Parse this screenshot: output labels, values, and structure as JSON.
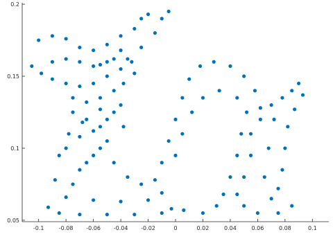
{
  "chart_data": {
    "type": "scatter",
    "title": "",
    "xlabel": "",
    "ylabel": "",
    "xlim": [
      -0.112,
      0.112
    ],
    "ylim": [
      0.049,
      0.201
    ],
    "grid": false,
    "legend": "none",
    "x_ticks": [
      -0.1,
      -0.08,
      -0.06,
      -0.04,
      -0.02,
      0,
      0.02,
      0.04,
      0.06,
      0.08,
      0.1
    ],
    "x_tick_labels": [
      "-0.1",
      "-0.08",
      "-0.06",
      "-0.04",
      "-0.02",
      "0",
      "0.02",
      "0.04",
      "0.06",
      "0.08",
      "0.1"
    ],
    "y_ticks": [
      0.05,
      0.1,
      0.15,
      0.2
    ],
    "y_tick_labels": [
      "0.05",
      "0.1",
      "0.15",
      "0.2"
    ],
    "marker_color": "#0072BD",
    "series": [
      {
        "points_xy": [
          [
            -0.093,
            0.059
          ],
          [
            -0.085,
            0.055
          ],
          [
            -0.07,
            0.054
          ],
          [
            -0.05,
            0.054
          ],
          [
            -0.03,
            0.054
          ],
          [
            -0.01,
            0.055
          ],
          [
            -0.003,
            0.058
          ],
          [
            -0.08,
            0.066
          ],
          [
            -0.06,
            0.064
          ],
          [
            -0.04,
            0.063
          ],
          [
            -0.02,
            0.064
          ],
          [
            -0.01,
            0.069
          ],
          [
            -0.088,
            0.078
          ],
          [
            -0.085,
            0.095
          ],
          [
            -0.078,
            0.11
          ],
          [
            -0.065,
            0.12
          ],
          [
            -0.055,
            0.127
          ],
          [
            -0.045,
            0.125
          ],
          [
            -0.038,
            0.115
          ],
          [
            -0.07,
            0.085
          ],
          [
            -0.06,
            0.095
          ],
          [
            -0.05,
            0.105
          ],
          [
            -0.045,
            0.09
          ],
          [
            -0.035,
            0.08
          ],
          [
            -0.025,
            0.075
          ],
          [
            -0.015,
            0.078
          ],
          [
            -0.08,
            0.1
          ],
          [
            -0.07,
            0.108
          ],
          [
            -0.06,
            0.112
          ],
          [
            -0.055,
            0.1
          ],
          [
            -0.065,
            0.09
          ],
          [
            -0.075,
            0.075
          ],
          [
            -0.01,
            0.09
          ],
          [
            -0.005,
            0.105
          ],
          [
            0.0,
            0.12
          ],
          [
            0.005,
            0.135
          ],
          [
            0.01,
            0.148
          ],
          [
            0.018,
            0.157
          ],
          [
            0.028,
            0.16
          ],
          [
            0.04,
            0.157
          ],
          [
            0.05,
            0.15
          ],
          [
            0.058,
            0.14
          ],
          [
            0.062,
            0.128
          ],
          [
            0.0,
            0.095
          ],
          [
            0.005,
            0.11
          ],
          [
            0.012,
            0.125
          ],
          [
            0.02,
            0.135
          ],
          [
            0.032,
            0.14
          ],
          [
            0.045,
            0.135
          ],
          [
            0.052,
            0.125
          ],
          [
            0.048,
            0.11
          ],
          [
            0.045,
            0.095
          ],
          [
            0.04,
            0.08
          ],
          [
            0.035,
            0.068
          ],
          [
            0.03,
            0.06
          ],
          [
            0.02,
            0.055
          ],
          [
            0.006,
            0.057
          ],
          [
            0.055,
            0.11
          ],
          [
            0.055,
            0.095
          ],
          [
            0.05,
            0.08
          ],
          [
            0.045,
            0.068
          ],
          [
            0.05,
            0.06
          ],
          [
            0.06,
            0.055
          ],
          [
            0.075,
            0.055
          ],
          [
            0.085,
            0.06
          ],
          [
            0.062,
            0.12
          ],
          [
            0.07,
            0.13
          ],
          [
            0.078,
            0.135
          ],
          [
            0.085,
            0.14
          ],
          [
            0.09,
            0.145
          ],
          [
            0.093,
            0.137
          ],
          [
            0.087,
            0.127
          ],
          [
            0.082,
            0.115
          ],
          [
            0.08,
            0.1
          ],
          [
            0.078,
            0.085
          ],
          [
            0.075,
            0.072
          ],
          [
            0.07,
            0.065
          ],
          [
            0.065,
            0.08
          ],
          [
            0.068,
            0.1
          ],
          [
            0.072,
            0.12
          ],
          [
            -0.105,
            0.157
          ],
          [
            -0.098,
            0.152
          ],
          [
            -0.09,
            0.148
          ],
          [
            -0.08,
            0.145
          ],
          [
            -0.07,
            0.143
          ],
          [
            -0.06,
            0.145
          ],
          [
            -0.05,
            0.15
          ],
          [
            -0.04,
            0.155
          ],
          [
            -0.032,
            0.16
          ],
          [
            -0.1,
            0.175
          ],
          [
            -0.09,
            0.178
          ],
          [
            -0.08,
            0.176
          ],
          [
            -0.07,
            0.17
          ],
          [
            -0.06,
            0.168
          ],
          [
            -0.05,
            0.172
          ],
          [
            -0.04,
            0.178
          ],
          [
            -0.03,
            0.183
          ],
          [
            -0.025,
            0.19
          ],
          [
            -0.02,
            0.193
          ],
          [
            -0.01,
            0.19
          ],
          [
            -0.005,
            0.195
          ],
          [
            -0.015,
            0.18
          ],
          [
            -0.025,
            0.17
          ],
          [
            -0.035,
            0.162
          ],
          [
            -0.045,
            0.162
          ],
          [
            -0.055,
            0.158
          ],
          [
            -0.09,
            0.16
          ],
          [
            -0.08,
            0.162
          ],
          [
            -0.07,
            0.16
          ],
          [
            -0.06,
            0.157
          ],
          [
            -0.05,
            0.16
          ],
          [
            -0.04,
            0.168
          ],
          [
            -0.075,
            0.135
          ],
          [
            -0.065,
            0.132
          ],
          [
            -0.055,
            0.135
          ],
          [
            -0.045,
            0.14
          ],
          [
            -0.038,
            0.145
          ],
          [
            -0.03,
            0.152
          ],
          [
            -0.075,
            0.125
          ],
          [
            -0.068,
            0.118
          ],
          [
            -0.055,
            0.115
          ],
          [
            -0.05,
            0.12
          ],
          [
            -0.04,
            0.13
          ]
        ]
      }
    ]
  }
}
